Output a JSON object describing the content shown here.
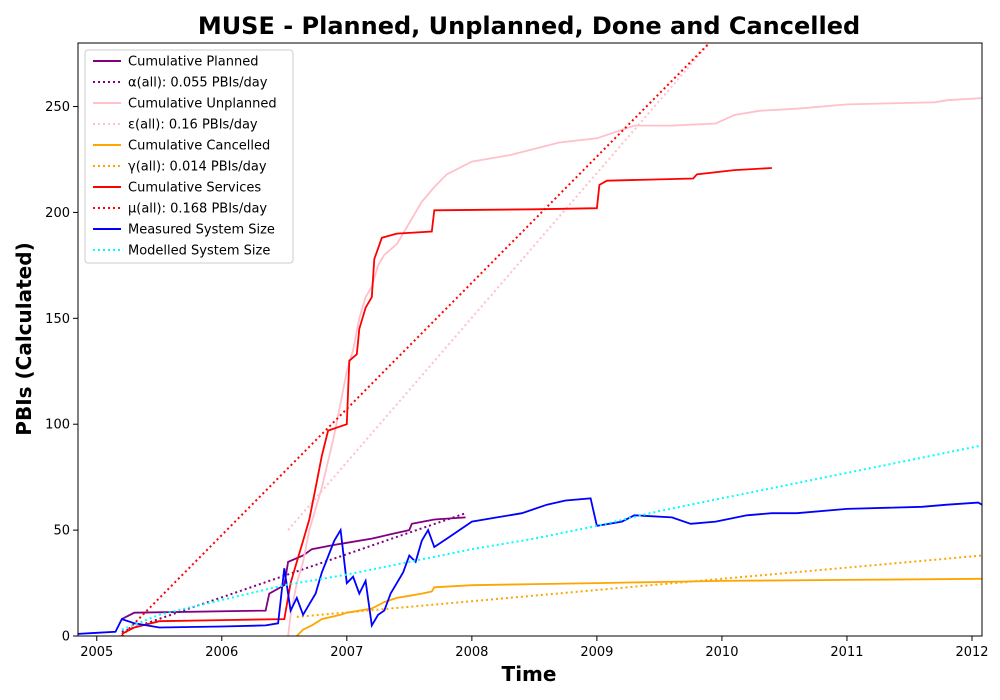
{
  "chart_data": {
    "type": "line",
    "title": "MUSE - Planned, Unplanned, Done  and Cancelled",
    "xlabel": "Time",
    "ylabel": "PBIs (Calculated)",
    "xlim": [
      2004.85,
      2012.08
    ],
    "ylim": [
      0,
      280
    ],
    "x_ticks": [
      2005,
      2006,
      2007,
      2008,
      2009,
      2010,
      2011,
      2012
    ],
    "x_tick_labels": [
      "2005",
      "2006",
      "2007",
      "2008",
      "2009",
      "2010",
      "2011",
      "2012"
    ],
    "y_ticks": [
      0,
      50,
      100,
      150,
      200,
      250
    ],
    "y_tick_labels": [
      "0",
      "50",
      "100",
      "150",
      "200",
      "250"
    ],
    "grid": false,
    "legend_position": "top-left",
    "series": [
      {
        "name": "Cumulative Planned",
        "color": "#800080",
        "style": "solid",
        "points": [
          [
            2005.2,
            8
          ],
          [
            2005.3,
            11
          ],
          [
            2006.35,
            12
          ],
          [
            2006.38,
            20
          ],
          [
            2006.5,
            24
          ],
          [
            2006.53,
            35
          ],
          [
            2006.65,
            38
          ],
          [
            2006.72,
            41
          ],
          [
            2006.9,
            43
          ],
          [
            2007.0,
            44
          ],
          [
            2007.2,
            46
          ],
          [
            2007.35,
            48
          ],
          [
            2007.5,
            50
          ],
          [
            2007.52,
            53
          ],
          [
            2007.7,
            55
          ],
          [
            2007.95,
            56
          ]
        ]
      },
      {
        "name": "α(all): 0.055 PBIs/day",
        "color": "#800080",
        "style": "dotted",
        "points": [
          [
            2005.2,
            2
          ],
          [
            2007.95,
            58
          ]
        ]
      },
      {
        "name": "Cumulative Unplanned",
        "color": "#ffc0cb",
        "style": "solid",
        "points": [
          [
            2006.53,
            0
          ],
          [
            2006.55,
            10
          ],
          [
            2006.6,
            25
          ],
          [
            2006.65,
            35
          ],
          [
            2006.7,
            50
          ],
          [
            2006.8,
            70
          ],
          [
            2006.9,
            95
          ],
          [
            2006.95,
            110
          ],
          [
            2007.0,
            125
          ],
          [
            2007.05,
            135
          ],
          [
            2007.1,
            150
          ],
          [
            2007.15,
            160
          ],
          [
            2007.2,
            165
          ],
          [
            2007.25,
            175
          ],
          [
            2007.3,
            180
          ],
          [
            2007.4,
            185
          ],
          [
            2007.5,
            195
          ],
          [
            2007.6,
            205
          ],
          [
            2007.7,
            212
          ],
          [
            2007.8,
            218
          ],
          [
            2008.0,
            224
          ],
          [
            2008.3,
            227
          ],
          [
            2008.5,
            230
          ],
          [
            2008.7,
            233
          ],
          [
            2009.0,
            235
          ],
          [
            2009.3,
            241
          ],
          [
            2009.6,
            241
          ],
          [
            2009.95,
            242
          ],
          [
            2010.1,
            246
          ],
          [
            2010.3,
            248
          ],
          [
            2010.6,
            249
          ],
          [
            2011.0,
            251
          ],
          [
            2011.7,
            252
          ],
          [
            2011.8,
            253
          ],
          [
            2012.08,
            254
          ]
        ]
      },
      {
        "name": "ε(all): 0.16 PBIs/day",
        "color": "#ffc0cb",
        "style": "dotted",
        "points": [
          [
            2006.53,
            50
          ],
          [
            2009.9,
            280
          ]
        ]
      },
      {
        "name": "Cumulative Cancelled",
        "color": "#ffa500",
        "style": "solid",
        "points": [
          [
            2006.6,
            0
          ],
          [
            2006.65,
            3
          ],
          [
            2006.72,
            5
          ],
          [
            2006.8,
            8
          ],
          [
            2006.95,
            10
          ],
          [
            2007.0,
            11
          ],
          [
            2007.2,
            13
          ],
          [
            2007.3,
            16
          ],
          [
            2007.4,
            18
          ],
          [
            2007.5,
            19
          ],
          [
            2007.6,
            20
          ],
          [
            2007.68,
            21
          ],
          [
            2007.7,
            23
          ],
          [
            2008.0,
            24
          ],
          [
            2008.5,
            24.5
          ],
          [
            2009.0,
            25
          ],
          [
            2009.5,
            25.5
          ],
          [
            2010.0,
            26
          ],
          [
            2011.0,
            26.5
          ],
          [
            2012.08,
            27
          ]
        ]
      },
      {
        "name": "γ(all): 0.014 PBIs/day",
        "color": "#ffa500",
        "style": "dotted",
        "points": [
          [
            2006.6,
            9
          ],
          [
            2012.08,
            38
          ]
        ]
      },
      {
        "name": "Cumulative Services",
        "color": "#ff0000",
        "style": "solid",
        "points": [
          [
            2005.2,
            1
          ],
          [
            2005.3,
            4
          ],
          [
            2005.5,
            7
          ],
          [
            2006.0,
            7.5
          ],
          [
            2006.5,
            8
          ],
          [
            2006.55,
            25
          ],
          [
            2006.6,
            35
          ],
          [
            2006.65,
            45
          ],
          [
            2006.7,
            55
          ],
          [
            2006.75,
            70
          ],
          [
            2006.8,
            85
          ],
          [
            2006.85,
            97
          ],
          [
            2006.95,
            99
          ],
          [
            2007.0,
            100
          ],
          [
            2007.02,
            130
          ],
          [
            2007.08,
            133
          ],
          [
            2007.1,
            145
          ],
          [
            2007.15,
            155
          ],
          [
            2007.2,
            160
          ],
          [
            2007.22,
            178
          ],
          [
            2007.25,
            183
          ],
          [
            2007.28,
            188
          ],
          [
            2007.4,
            190
          ],
          [
            2007.68,
            191
          ],
          [
            2007.7,
            201
          ],
          [
            2008.5,
            201.5
          ],
          [
            2009.0,
            202
          ],
          [
            2009.02,
            213
          ],
          [
            2009.08,
            215
          ],
          [
            2009.77,
            216
          ],
          [
            2009.8,
            218
          ],
          [
            2010.1,
            220
          ],
          [
            2010.4,
            221
          ]
        ]
      },
      {
        "name": "μ(all): 0.168 PBIs/day",
        "color": "#ff0000",
        "style": "dotted",
        "points": [
          [
            2005.2,
            0
          ],
          [
            2009.9,
            280
          ]
        ]
      },
      {
        "name": "Measured System Size",
        "color": "#0000ff",
        "style": "solid",
        "points": [
          [
            2004.85,
            1
          ],
          [
            2005.0,
            1.5
          ],
          [
            2005.15,
            2
          ],
          [
            2005.2,
            8
          ],
          [
            2005.3,
            6
          ],
          [
            2005.5,
            4
          ],
          [
            2006.0,
            4.5
          ],
          [
            2006.35,
            5
          ],
          [
            2006.45,
            6
          ],
          [
            2006.5,
            32
          ],
          [
            2006.55,
            12
          ],
          [
            2006.6,
            18
          ],
          [
            2006.65,
            10
          ],
          [
            2006.7,
            15
          ],
          [
            2006.75,
            20
          ],
          [
            2006.8,
            30
          ],
          [
            2006.9,
            45
          ],
          [
            2006.95,
            50
          ],
          [
            2007.0,
            25
          ],
          [
            2007.05,
            28
          ],
          [
            2007.1,
            20
          ],
          [
            2007.15,
            26
          ],
          [
            2007.2,
            5
          ],
          [
            2007.25,
            10
          ],
          [
            2007.3,
            12
          ],
          [
            2007.35,
            20
          ],
          [
            2007.45,
            30
          ],
          [
            2007.5,
            38
          ],
          [
            2007.55,
            35
          ],
          [
            2007.6,
            45
          ],
          [
            2007.65,
            50
          ],
          [
            2007.7,
            42
          ],
          [
            2007.8,
            46
          ],
          [
            2007.9,
            50
          ],
          [
            2008.0,
            54
          ],
          [
            2008.2,
            56
          ],
          [
            2008.4,
            58
          ],
          [
            2008.6,
            62
          ],
          [
            2008.75,
            64
          ],
          [
            2008.95,
            65
          ],
          [
            2009.0,
            52
          ],
          [
            2009.2,
            54
          ],
          [
            2009.3,
            57
          ],
          [
            2009.6,
            56
          ],
          [
            2009.75,
            53
          ],
          [
            2009.95,
            54
          ],
          [
            2010.2,
            57
          ],
          [
            2010.4,
            58
          ],
          [
            2010.6,
            58
          ],
          [
            2011.0,
            60
          ],
          [
            2011.6,
            61
          ],
          [
            2011.8,
            62
          ],
          [
            2012.05,
            63
          ],
          [
            2012.08,
            62
          ]
        ]
      },
      {
        "name": "Modelled System Size",
        "color": "#00ffff",
        "style": "dotted",
        "points": [
          [
            2005.2,
            3
          ],
          [
            2005.5,
            10
          ],
          [
            2006.0,
            17
          ],
          [
            2006.5,
            24
          ],
          [
            2007.0,
            29
          ],
          [
            2007.5,
            35
          ],
          [
            2008.0,
            41
          ],
          [
            2008.5,
            46
          ],
          [
            2009.0,
            52
          ],
          [
            2009.5,
            59
          ],
          [
            2010.0,
            65
          ],
          [
            2010.5,
            71
          ],
          [
            2011.0,
            77
          ],
          [
            2011.5,
            83
          ],
          [
            2012.08,
            90
          ]
        ]
      }
    ]
  }
}
